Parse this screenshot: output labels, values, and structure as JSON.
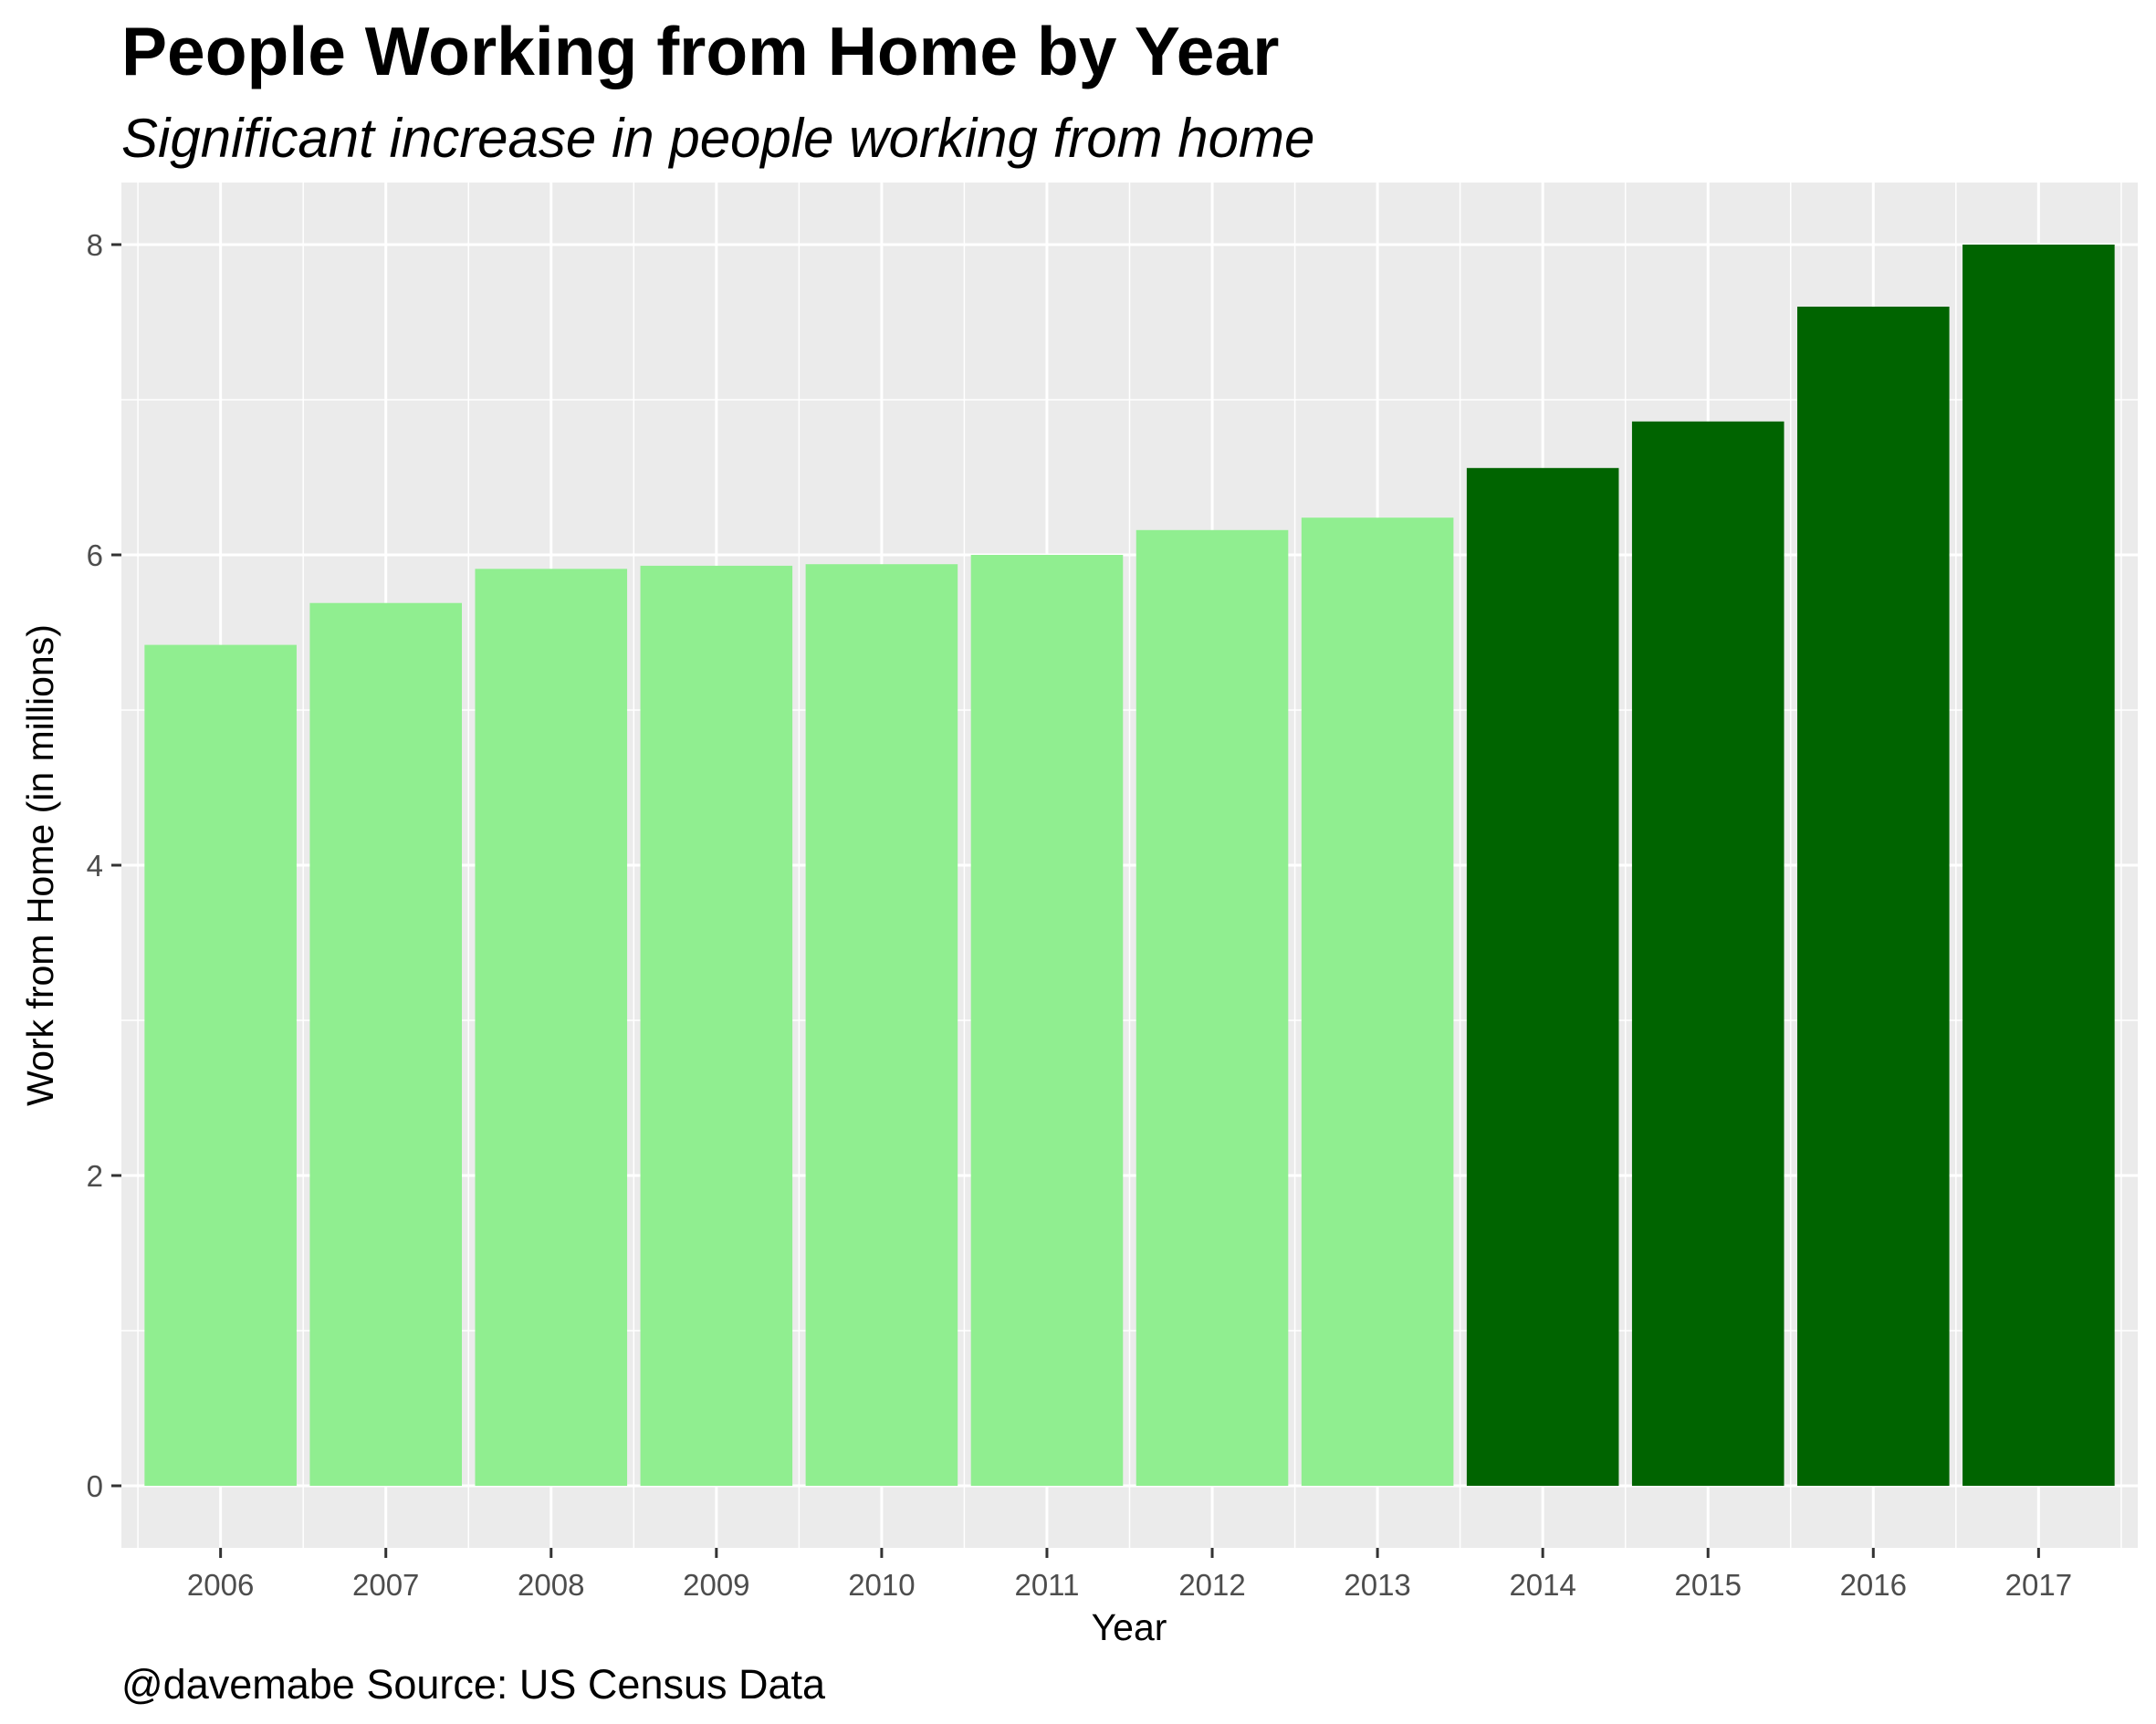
{
  "chart_data": {
    "type": "bar",
    "title": "People Working from Home by Year",
    "subtitle": "Significant increase in people working from home",
    "caption": "@davemabe Source: US Census Data",
    "xlabel": "Year",
    "ylabel": "Work from Home (in millions)",
    "categories": [
      "2006",
      "2007",
      "2008",
      "2009",
      "2010",
      "2011",
      "2012",
      "2013",
      "2014",
      "2015",
      "2016",
      "2017"
    ],
    "values": [
      5.42,
      5.69,
      5.91,
      5.93,
      5.94,
      6.0,
      6.16,
      6.24,
      6.56,
      6.86,
      7.6,
      8.0
    ],
    "bar_colors": [
      "#90ee90",
      "#90ee90",
      "#90ee90",
      "#90ee90",
      "#90ee90",
      "#90ee90",
      "#90ee90",
      "#90ee90",
      "#006400",
      "#006400",
      "#006400",
      "#006400"
    ],
    "ylim": [
      -0.4,
      8.4
    ],
    "yticks": [
      0,
      2,
      4,
      6,
      8
    ],
    "grid": true,
    "panel_background": "#ebebeb",
    "grid_color": "#ffffff",
    "legend": "none"
  }
}
